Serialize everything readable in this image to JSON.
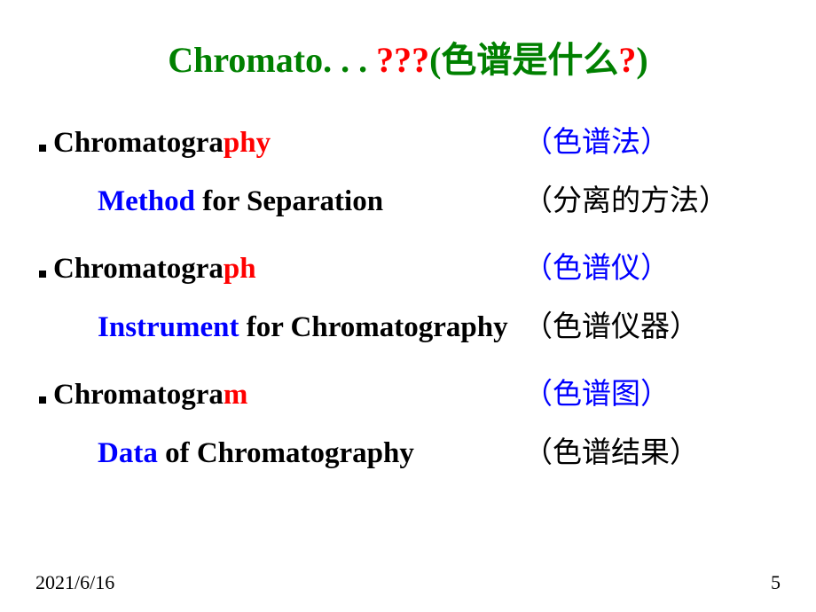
{
  "title": {
    "prefix": "Chromato. . . ",
    "qmarks": "???",
    "suffix_open": "(",
    "suffix_text": "色谱是什么",
    "suffix_q": "?",
    "suffix_close": ")"
  },
  "rows": [
    {
      "main_left_k": "Chromatogra",
      "main_left_r": "phy",
      "main_right": "（色谱法）",
      "sub_left_blue": "Method",
      "sub_left_rest": " for Separation",
      "sub_right": "（分离的方法）"
    },
    {
      "main_left_k": "Chromatogra",
      "main_left_r": "ph",
      "main_right": "（色谱仪）",
      "sub_left_blue": "Instrument",
      "sub_left_rest": " for Chromatography",
      "sub_right": "（色谱仪器）"
    },
    {
      "main_left_k": "Chromatogra",
      "main_left_r": "m",
      "main_right": "（色谱图）",
      "sub_left_blue": "Data",
      "sub_left_rest": " of Chromatography",
      "sub_right": "（色谱结果）"
    }
  ],
  "footer": {
    "date": "2021/6/16",
    "page": "5"
  },
  "colors": {
    "title_green": "#008000",
    "red": "#ff0000",
    "blue": "#0000ff",
    "black": "#000000",
    "background": "#ffffff"
  },
  "fonts": {
    "title_size": 40,
    "body_size": 33,
    "footer_size": 22
  }
}
